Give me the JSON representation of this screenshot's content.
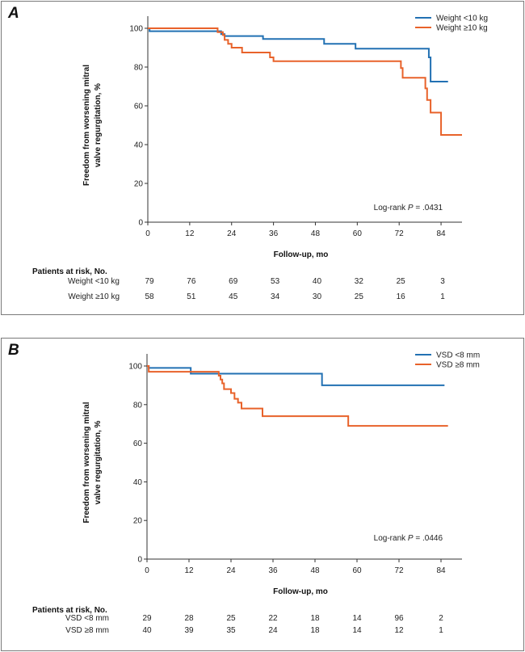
{
  "colors": {
    "blue": "#2271b3",
    "orange": "#e8622a",
    "axis": "#333333"
  },
  "chart_data": [
    {
      "type": "line",
      "panel_label": "A",
      "ylabel_line1": "Freedom from worsening mitral",
      "ylabel_line2": "valve regurgitation, %",
      "xlabel": "Follow-up, mo",
      "xticks": [
        "0",
        "12",
        "24",
        "36",
        "48",
        "60",
        "72",
        "84"
      ],
      "yticks": [
        "0",
        "20",
        "40",
        "60",
        "80",
        "100"
      ],
      "xlim": [
        0,
        90
      ],
      "ylim": [
        0,
        100
      ],
      "annotation_prefix": "Log-rank ",
      "annotation_p": "P",
      "annotation_value": " = .0431",
      "legend_position": "top-right",
      "series": [
        {
          "name": "Weight <10 kg",
          "color": "blue",
          "x": [
            0,
            0.5,
            12,
            21,
            22,
            33,
            50.5,
            59.5,
            79,
            80.5,
            81,
            86
          ],
          "y": [
            100,
            98.5,
            98.5,
            97,
            96,
            94.5,
            92,
            89.5,
            89.5,
            85,
            72.5,
            72.5
          ]
        },
        {
          "name": "Weight ≥10 kg",
          "color": "orange",
          "x": [
            0,
            12,
            20,
            21.5,
            22,
            23,
            24,
            27,
            35,
            36,
            63,
            72.5,
            73,
            79.5,
            80,
            81,
            84,
            90
          ],
          "y": [
            100,
            100,
            98,
            96.5,
            94,
            92,
            90,
            87.5,
            85,
            83,
            83,
            79.5,
            74.5,
            69,
            63,
            56.5,
            45,
            45
          ]
        }
      ],
      "risk_title": "Patients at risk, No.",
      "risk_rows": [
        {
          "label": "Weight <10 kg",
          "values": [
            "79",
            "76",
            "69",
            "53",
            "40",
            "32",
            "25",
            "3"
          ]
        },
        {
          "label": "Weight ≥10 kg",
          "values": [
            "58",
            "51",
            "45",
            "34",
            "30",
            "25",
            "16",
            "1"
          ]
        }
      ]
    },
    {
      "type": "line",
      "panel_label": "B",
      "ylabel_line1": "Freedom from worsening mitral",
      "ylabel_line2": "valve regurgitation, %",
      "xlabel": "Follow-up, mo",
      "xticks": [
        "0",
        "12",
        "24",
        "36",
        "48",
        "60",
        "72",
        "84"
      ],
      "yticks": [
        "0",
        "20",
        "40",
        "60",
        "80",
        "100"
      ],
      "xlim": [
        0,
        90
      ],
      "ylim": [
        0,
        100
      ],
      "annotation_prefix": "Log-rank ",
      "annotation_p": "P",
      "annotation_value": " = .0446",
      "legend_position": "top-right",
      "series": [
        {
          "name": "VSD <8 mm",
          "color": "blue",
          "x": [
            0,
            0.5,
            12,
            12.5,
            49.5,
            50,
            85
          ],
          "y": [
            100,
            99,
            99,
            96,
            96,
            90,
            90
          ]
        },
        {
          "name": "VSD ≥8 mm",
          "color": "orange",
          "x": [
            0,
            0.5,
            20,
            20.5,
            21,
            21.5,
            22,
            24,
            25,
            26,
            27,
            33,
            57.5,
            86
          ],
          "y": [
            100,
            97,
            97,
            95,
            93,
            91,
            88,
            86,
            83,
            81,
            78,
            74,
            69,
            69
          ]
        }
      ],
      "risk_title": "Patients at risk, No.",
      "risk_rows": [
        {
          "label": "VSD <8 mm",
          "values": [
            "29",
            "28",
            "25",
            "22",
            "18",
            "14",
            "96",
            "2"
          ]
        },
        {
          "label": "VSD ≥8 mm",
          "values": [
            "40",
            "39",
            "35",
            "24",
            "18",
            "14",
            "12",
            "1"
          ]
        }
      ]
    }
  ]
}
